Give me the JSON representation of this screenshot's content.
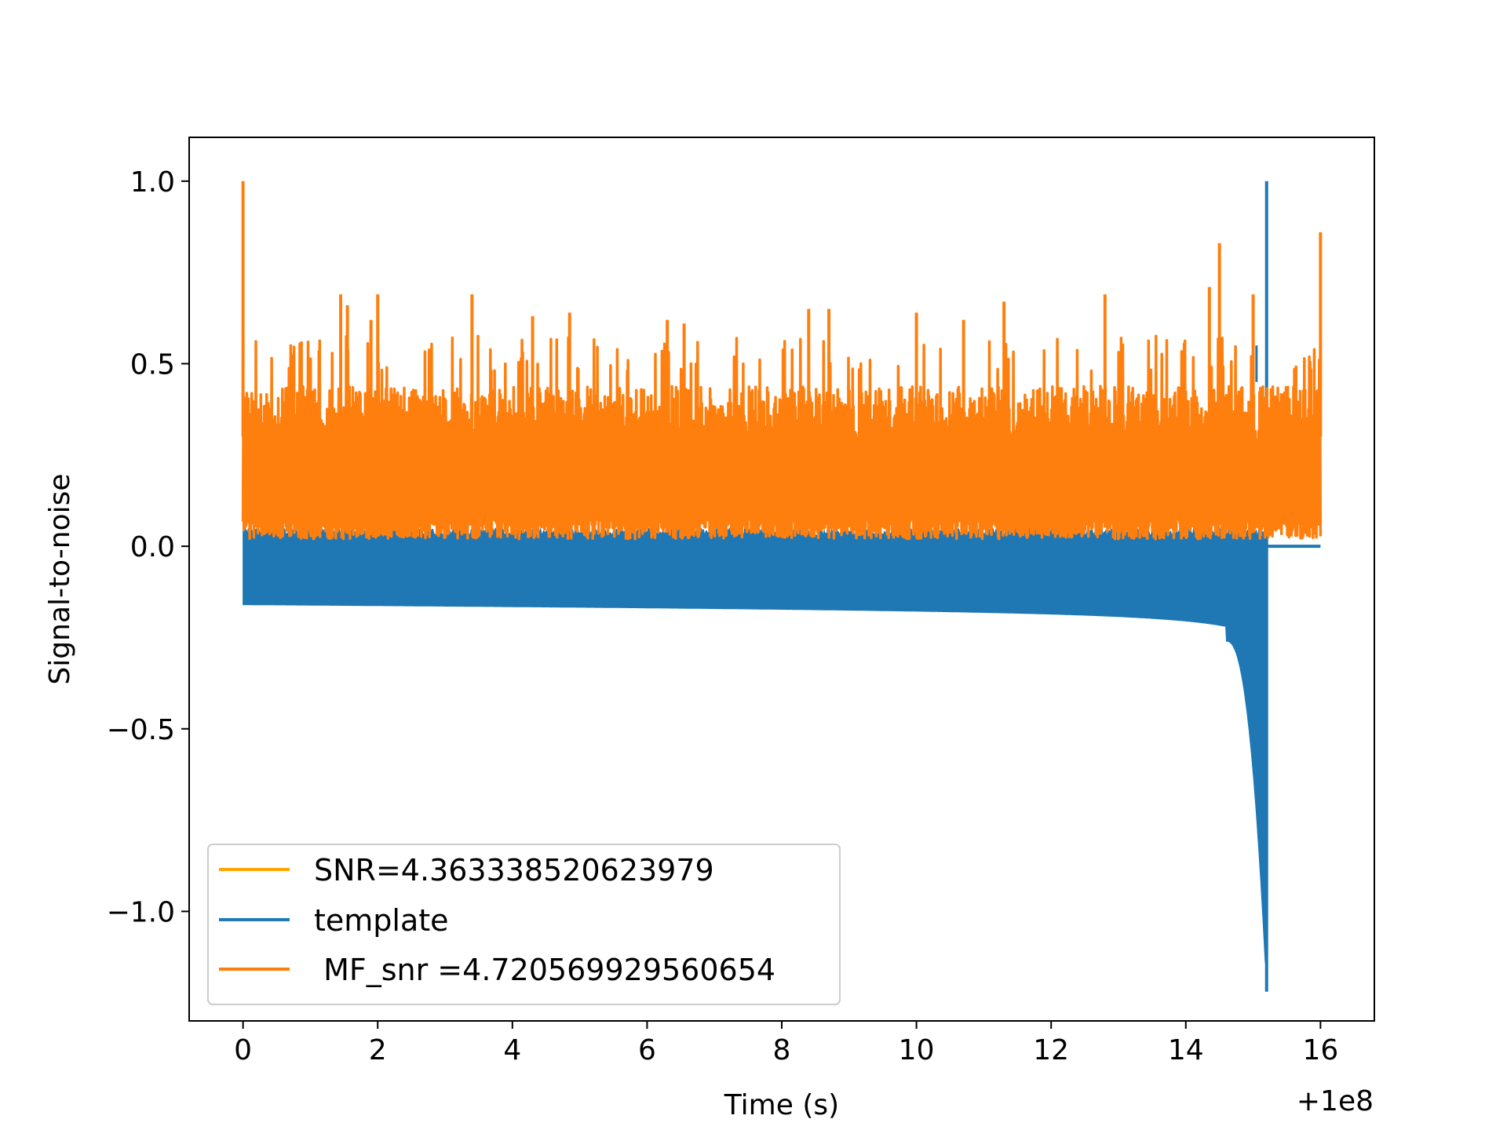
{
  "chart_data": {
    "type": "line",
    "title": "",
    "xlabel": "Time (s)",
    "ylabel": "Signal-to-noise",
    "x_offset_label": "+1e8",
    "xlim": [
      -0.8,
      16.8
    ],
    "ylim": [
      -1.3,
      1.12
    ],
    "xticks": [
      0,
      2,
      4,
      6,
      8,
      10,
      12,
      14,
      16
    ],
    "xtick_labels": [
      "0",
      "2",
      "4",
      "6",
      "8",
      "10",
      "12",
      "14",
      "16"
    ],
    "yticks": [
      1.0,
      0.5,
      0.0,
      -0.5,
      -1.0
    ],
    "ytick_labels": [
      "1.0",
      "0.5",
      "0.0",
      "−0.5",
      "−1.0"
    ],
    "grid": false,
    "legend_position": "lower-left",
    "series": [
      {
        "name": "SNR=4.363338520623979",
        "color": "#ffa500",
        "style": "line",
        "description_values": []
      },
      {
        "name": "template",
        "color": "#1f77b4",
        "style": "chirp",
        "t_start": 0.0,
        "t_merger": 15.2,
        "t_end": 16.0,
        "lower_envelope_start": -0.16,
        "lower_envelope_mid": -0.22,
        "min_value": -1.22,
        "max_value": 1.0,
        "upper_envelope_typical": 0.05
      },
      {
        "name": " MF_snr =4.720569929560654",
        "color": "#ff7f0e",
        "style": "noise",
        "t_start": 0.0,
        "t_end": 16.0,
        "typical_range": [
          0.0,
          0.45
        ],
        "peak_values": [
          {
            "x": 0.0,
            "y": 1.0
          },
          {
            "x": 1.45,
            "y": 0.69
          },
          {
            "x": 1.55,
            "y": 0.66
          },
          {
            "x": 1.9,
            "y": 0.62
          },
          {
            "x": 2.0,
            "y": 0.69
          },
          {
            "x": 3.4,
            "y": 0.69
          },
          {
            "x": 4.3,
            "y": 0.63
          },
          {
            "x": 4.85,
            "y": 0.64
          },
          {
            "x": 6.3,
            "y": 0.62
          },
          {
            "x": 6.55,
            "y": 0.61
          },
          {
            "x": 8.4,
            "y": 0.65
          },
          {
            "x": 8.7,
            "y": 0.65
          },
          {
            "x": 10.0,
            "y": 0.64
          },
          {
            "x": 10.7,
            "y": 0.62
          },
          {
            "x": 11.3,
            "y": 0.67
          },
          {
            "x": 12.8,
            "y": 0.69
          },
          {
            "x": 14.35,
            "y": 0.71
          },
          {
            "x": 14.5,
            "y": 0.83
          },
          {
            "x": 15.0,
            "y": 0.69
          },
          {
            "x": 16.0,
            "y": 0.86
          }
        ]
      }
    ]
  },
  "legend": {
    "items": [
      {
        "label": "SNR=4.363338520623979",
        "color": "#ffa500"
      },
      {
        "label": "template",
        "color": "#1f77b4"
      },
      {
        "label": " MF_snr =4.720569929560654",
        "color": "#ff7f0e"
      }
    ]
  }
}
